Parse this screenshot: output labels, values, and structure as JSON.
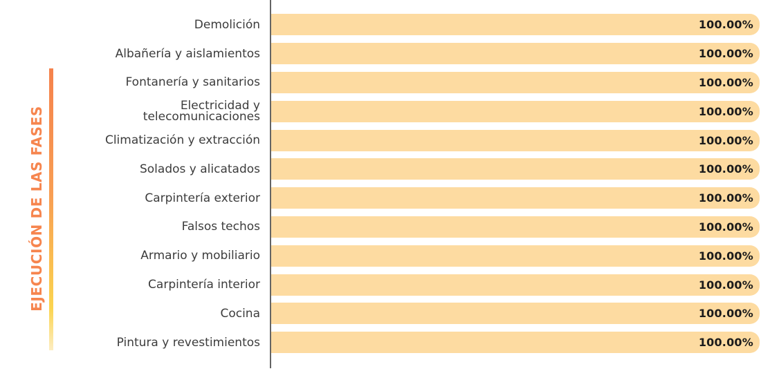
{
  "title": {
    "text": "EJECUCIÓN DE LAS FASES",
    "color": "#F6854E"
  },
  "colors": {
    "bar_fill": "#FDDBA1",
    "axis_line": "#646464",
    "category_text": "#3C3C3C",
    "value_text": "#1B1B1B",
    "accent_gradient_top": "#F5824C",
    "accent_gradient_bottom": "#FBD44F"
  },
  "chart_data": {
    "type": "bar",
    "orientation": "horizontal",
    "title": "EJECUCIÓN DE LAS FASES",
    "xlabel": "",
    "ylabel": "EJECUCIÓN DE LAS FASES",
    "xlim": [
      0,
      100
    ],
    "grid": false,
    "legend_position": "none",
    "categories": [
      "Demolición",
      "Albañería y aislamientos",
      "Fontanería y sanitarios",
      "Electricidad y\ntelecomunicaciones",
      "Climatización y extracción",
      "Solados y alicatados",
      "Carpintería exterior",
      "Falsos techos",
      "Armario y mobiliario",
      "Carpintería interior",
      "Cocina",
      "Pintura y revestimientos"
    ],
    "values": [
      100,
      100,
      100,
      100,
      100,
      100,
      100,
      100,
      100,
      100,
      100,
      100
    ],
    "value_labels": [
      "100.00%",
      "100.00%",
      "100.00%",
      "100.00%",
      "100.00%",
      "100.00%",
      "100.00%",
      "100.00%",
      "100.00%",
      "100.00%",
      "100.00%",
      "100.00%"
    ]
  }
}
